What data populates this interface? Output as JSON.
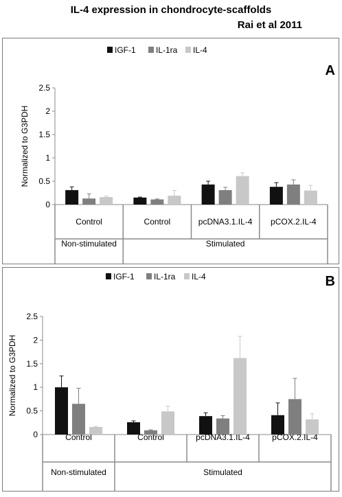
{
  "header": {
    "title": "IL-4 expression in chondrocyte-scaffolds",
    "subtitle": "Rai et al 2011"
  },
  "chart_data": [
    {
      "type": "bar",
      "panel_label": "A",
      "ylabel": "Normalized to G3PDH",
      "ylim": [
        0,
        2.5
      ],
      "yticks": [
        "0",
        "0.5",
        "1",
        "1.5",
        "2",
        "2.5"
      ],
      "categories": [
        "Control",
        "Control",
        "pcDNA3.1.IL-4",
        "pCOX.2.IL-4"
      ],
      "groups": [
        {
          "label": "Non-stimulated",
          "span": [
            0,
            0
          ]
        },
        {
          "label": "Stimulated",
          "span": [
            1,
            3
          ]
        }
      ],
      "legend_position": "top",
      "series": [
        {
          "name": "IGF-1",
          "color": "#111111",
          "values": [
            0.31,
            0.15,
            0.43,
            0.38
          ],
          "errors": [
            0.07,
            0.01,
            0.07,
            0.09
          ]
        },
        {
          "name": "IL-1ra",
          "color": "#7f7f7f",
          "values": [
            0.13,
            0.11,
            0.31,
            0.43
          ],
          "errors": [
            0.1,
            0.01,
            0.06,
            0.1
          ]
        },
        {
          "name": "IL-4",
          "color": "#c8c8c8",
          "values": [
            0.16,
            0.19,
            0.61,
            0.3
          ],
          "errors": [
            0.02,
            0.11,
            0.07,
            0.11
          ]
        }
      ]
    },
    {
      "type": "bar",
      "panel_label": "B",
      "ylabel": "Normalized to G3PDH",
      "ylim": [
        0,
        2.5
      ],
      "yticks": [
        "0",
        "0.5",
        "1",
        "1.5",
        "2",
        "2.5"
      ],
      "categories": [
        "Control",
        "Control",
        "pcDNA3.1.IL-4",
        "pCOX.2.IL-4"
      ],
      "groups": [
        {
          "label": "Non-stimulated",
          "span": [
            0,
            0
          ]
        },
        {
          "label": "Stimulated",
          "span": [
            1,
            3
          ]
        }
      ],
      "legend_position": "top",
      "series": [
        {
          "name": "IGF-1",
          "color": "#111111",
          "values": [
            1.0,
            0.26,
            0.39,
            0.41
          ],
          "errors": [
            0.24,
            0.03,
            0.07,
            0.26
          ]
        },
        {
          "name": "IL-1ra",
          "color": "#7f7f7f",
          "values": [
            0.65,
            0.09,
            0.34,
            0.75
          ],
          "errors": [
            0.33,
            0.01,
            0.06,
            0.44
          ]
        },
        {
          "name": "IL-4",
          "color": "#c8c8c8",
          "values": [
            0.16,
            0.49,
            1.62,
            0.32
          ],
          "errors": [
            0.01,
            0.11,
            0.46,
            0.12
          ]
        }
      ]
    }
  ]
}
